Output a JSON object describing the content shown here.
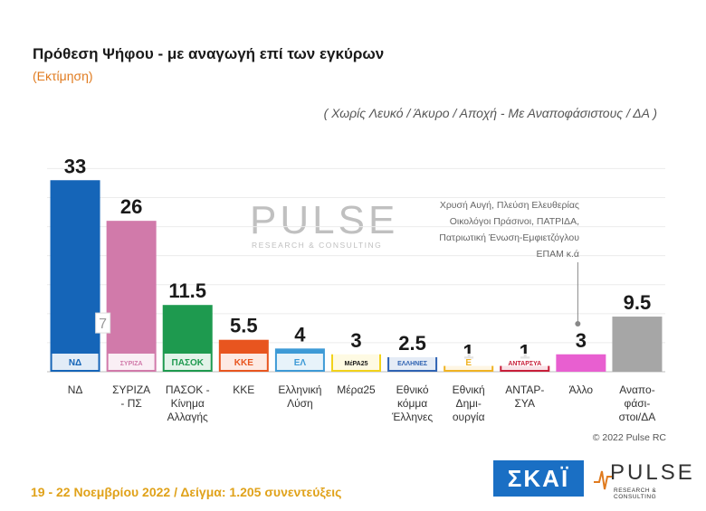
{
  "header": {
    "title": "Πρόθεση Ψήφου - με αναγωγή επί των εγκύρων",
    "subtitle": "(Εκτίμηση)",
    "note": "( Χωρίς Λευκό / Άκυρο / Αποχή  -  Με Αναποφάσιστους / ΔΑ )"
  },
  "annotation_lines": [
    "Χρυσή Αυγή, Πλεύση Ελευθερίας",
    "Οικολόγοι Πράσινοι, ΠΑΤΡΙΔΑ,",
    "Πατριωτική Ένωση-Εμφιετζόγλου",
    "ΕΠΑΜ  κ.ά"
  ],
  "watermark": {
    "big": "PULSE",
    "small": "RESEARCH & CONSULTING"
  },
  "chart_data": {
    "type": "bar",
    "categories": [
      [
        "ΝΔ"
      ],
      [
        "ΣΥΡΙΖΑ",
        "- ΠΣ"
      ],
      [
        "ΠΑΣΟΚ -",
        "Κίνημα",
        "Αλλαγής"
      ],
      [
        "ΚΚΕ"
      ],
      [
        "Ελληνική",
        "Λύση"
      ],
      [
        "Μέρα25"
      ],
      [
        "Εθνικό",
        "κόμμα",
        "Έλληνες"
      ],
      [
        "Εθνική",
        "Δημι-",
        "ουργία"
      ],
      [
        "ΑΝΤΑΡ-",
        "ΣΥΑ"
      ],
      [
        "Άλλο"
      ],
      [
        "Αναπο-",
        "φάσι-",
        "στοι/ΔΑ"
      ]
    ],
    "values": [
      33,
      26,
      11.5,
      5.5,
      4,
      3,
      2.5,
      1,
      1,
      3,
      9.5
    ],
    "value_labels": [
      "33",
      "26",
      "11.5",
      "5.5",
      "4",
      "3",
      "2.5",
      "1",
      "1",
      "3",
      "9.5"
    ],
    "colors": [
      "#1565b8",
      "#d17aaa",
      "#1e9a4f",
      "#e8551f",
      "#3d9ad6",
      "#f2d21b",
      "#2f63b3",
      "#f0b323",
      "#c81f3a",
      "#e85fd0",
      "#a6a6a6"
    ],
    "logo_texts": [
      "ΝΔ",
      "ΣΥΡΙΖΑ",
      "ΠΑΣΟΚ",
      "ΚΚΕ",
      "ΕΛ",
      "ΜέΡΑ25",
      "ΕΛΛΗΝΕΣ",
      "Ε",
      "ΑΝΤΑΡΣΥΑ",
      "",
      ""
    ],
    "ylim": [
      0,
      36
    ],
    "grid": true,
    "syriza_marker": "7"
  },
  "copyright": "© 2022 Pulse RC",
  "footer": "19 - 22  Νοεμβρίου  2022  /  Δείγμα:  1.205 συνεντεύξεις",
  "logos": {
    "skai": "ΣΚΑΪ",
    "pulse": "PULSE",
    "pulse_small": "RESEARCH & CONSULTING"
  }
}
